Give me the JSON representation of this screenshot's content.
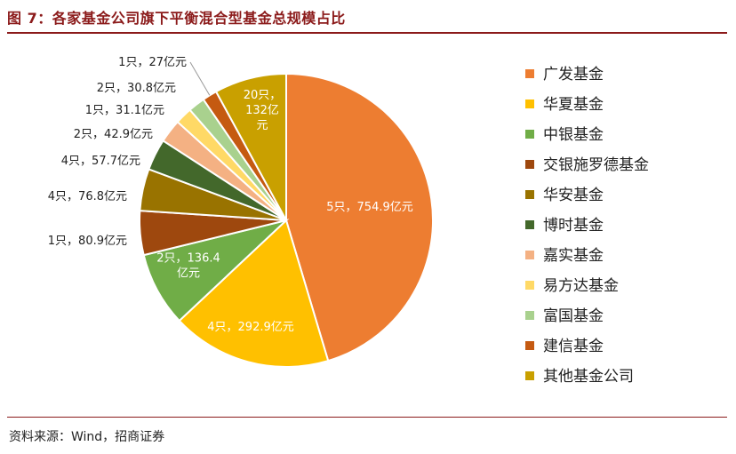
{
  "title": "图 7：各家基金公司旗下平衡混合型基金总规模占比",
  "source": "资料来源：Wind，招商证券",
  "chart_data": {
    "type": "pie",
    "categories": [
      "广发基金",
      "华夏基金",
      "中银基金",
      "交银施罗德基金",
      "华安基金",
      "博时基金",
      "嘉实基金",
      "易方达基金",
      "富国基金",
      "建信基金",
      "其他基金公司"
    ],
    "values": [
      754.9,
      292.9,
      136.4,
      80.9,
      76.8,
      57.7,
      42.9,
      31.1,
      30.8,
      27,
      132
    ],
    "counts": [
      5,
      4,
      2,
      1,
      4,
      4,
      2,
      1,
      2,
      1,
      20
    ],
    "data_labels": [
      [
        "5只，754.9亿元"
      ],
      [
        "4只，292.9亿元"
      ],
      [
        "2只，136.4",
        "亿元"
      ],
      [
        "1只，80.9亿元"
      ],
      [
        "4只，76.8亿元"
      ],
      [
        "4只，57.7亿元"
      ],
      [
        "2只，42.9亿元"
      ],
      [
        "1只，31.1亿元"
      ],
      [
        "2只，30.8亿元"
      ],
      [
        "1只，27亿元"
      ],
      [
        "20只，",
        "132亿",
        "元"
      ]
    ],
    "colors": [
      "#ed7d31",
      "#ffc000",
      "#70ad47",
      "#9e480e",
      "#997300",
      "#43682b",
      "#f4b183",
      "#ffd966",
      "#a9d18e",
      "#c55a11",
      "#c9a000"
    ],
    "legend_position": "right"
  }
}
